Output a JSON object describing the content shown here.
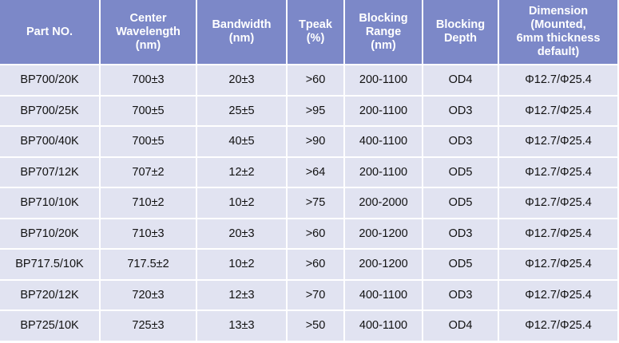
{
  "colors": {
    "header_bg": "#7c88c8",
    "row_bg": "#e1e3f1",
    "header_text": "#ffffff"
  },
  "table": {
    "headers": [
      "Part NO.",
      "Center\nWavelength\n(nm)",
      "Bandwidth\n(nm)",
      "Tpeak\n(%)",
      "Blocking\nRange\n(nm)",
      "Blocking\nDepth",
      "Dimension\n(Mounted,\n6mm thickness\ndefault)"
    ],
    "rows": [
      [
        "BP700/20K",
        "700±3",
        "20±3",
        ">60",
        "200-1100",
        "OD4",
        "Φ12.7/Φ25.4"
      ],
      [
        "BP700/25K",
        "700±5",
        "25±5",
        ">95",
        "200-1100",
        "OD3",
        "Φ12.7/Φ25.4"
      ],
      [
        "BP700/40K",
        "700±5",
        "40±5",
        ">90",
        "400-1100",
        "OD3",
        "Φ12.7/Φ25.4"
      ],
      [
        "BP707/12K",
        "707±2",
        "12±2",
        ">64",
        "200-1100",
        "OD5",
        "Φ12.7/Φ25.4"
      ],
      [
        "BP710/10K",
        "710±2",
        "10±2",
        ">75",
        "200-2000",
        "OD5",
        "Φ12.7/Φ25.4"
      ],
      [
        "BP710/20K",
        "710±3",
        "20±3",
        ">60",
        "200-1200",
        "OD3",
        "Φ12.7/Φ25.4"
      ],
      [
        "BP717.5/10K",
        "717.5±2",
        "10±2",
        ">60",
        "200-1200",
        "OD5",
        "Φ12.7/Φ25.4"
      ],
      [
        "BP720/12K",
        "720±3",
        "12±3",
        ">70",
        "400-1100",
        "OD3",
        "Φ12.7/Φ25.4"
      ],
      [
        "BP725/10K",
        "725±3",
        "13±3",
        ">50",
        "400-1100",
        "OD4",
        "Φ12.7/Φ25.4"
      ]
    ]
  }
}
